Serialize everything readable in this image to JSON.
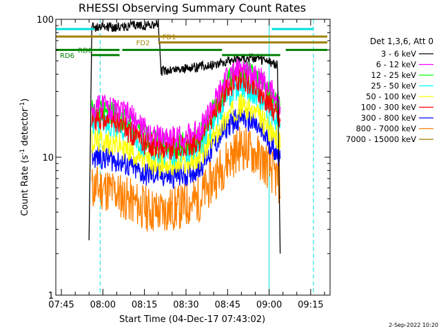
{
  "chart_data": {
    "type": "line",
    "title": "RHESSI Observing Summary Count Rates",
    "xlabel": "Start Time (04-Dec-17 07:43:02)",
    "ylabel_main": "Count Rate (s",
    "ylabel_sup1": "-1",
    "ylabel_mid": " detector",
    "ylabel_sup2": "-1",
    "ylabel_end": ")",
    "ylog": true,
    "ylim": [
      1,
      100
    ],
    "xlim": [
      "07:43",
      "09:22"
    ],
    "xticks": [
      "07:45",
      "08:00",
      "08:15",
      "08:30",
      "08:45",
      "09:00",
      "09:15"
    ],
    "yticks": [
      "1",
      "10",
      "100"
    ],
    "legend_header": "Det 1,3,6, Att 0",
    "legend_position": "right",
    "series": [
      {
        "name": "3 - 6 keV",
        "color": "#000000",
        "points": [
          [
            "07:55",
            2.5
          ],
          [
            "07:56",
            88
          ],
          [
            "08:05",
            88
          ],
          [
            "08:20",
            92
          ],
          [
            "08:21",
            42
          ],
          [
            "08:30",
            44
          ],
          [
            "08:40",
            47
          ],
          [
            "08:50",
            53
          ],
          [
            "08:55",
            52
          ],
          [
            "09:00",
            49
          ],
          [
            "09:03",
            47
          ],
          [
            "09:04",
            2
          ]
        ]
      },
      {
        "name": "6 - 12 keV",
        "color": "#ff00ff",
        "points": [
          [
            "07:56",
            22
          ],
          [
            "08:00",
            24
          ],
          [
            "08:05",
            22
          ],
          [
            "08:10",
            20
          ],
          [
            "08:15",
            16
          ],
          [
            "08:20",
            14
          ],
          [
            "08:25",
            14
          ],
          [
            "08:30",
            14
          ],
          [
            "08:35",
            16
          ],
          [
            "08:40",
            24
          ],
          [
            "08:45",
            38
          ],
          [
            "08:50",
            45
          ],
          [
            "08:55",
            40
          ],
          [
            "09:00",
            32
          ],
          [
            "09:04",
            24
          ]
        ]
      },
      {
        "name": "12 - 25 keV",
        "color": "#00ff00",
        "points": [
          [
            "07:56",
            22
          ],
          [
            "08:00",
            22
          ],
          [
            "08:05",
            20
          ],
          [
            "08:10",
            18
          ],
          [
            "08:15",
            14
          ],
          [
            "08:20",
            13
          ],
          [
            "08:25",
            12
          ],
          [
            "08:30",
            12.5
          ],
          [
            "08:35",
            14
          ],
          [
            "08:40",
            22
          ],
          [
            "08:45",
            35
          ],
          [
            "08:50",
            44
          ],
          [
            "08:55",
            38
          ],
          [
            "09:00",
            30
          ],
          [
            "09:04",
            22
          ]
        ]
      },
      {
        "name": "25 - 50 keV",
        "color": "#00ffff",
        "points": [
          [
            "07:56",
            18
          ],
          [
            "08:00",
            18
          ],
          [
            "08:05",
            17
          ],
          [
            "08:10",
            15
          ],
          [
            "08:15",
            12
          ],
          [
            "08:20",
            11
          ],
          [
            "08:25",
            10.5
          ],
          [
            "08:30",
            11
          ],
          [
            "08:35",
            12
          ],
          [
            "08:40",
            18
          ],
          [
            "08:45",
            28
          ],
          [
            "08:50",
            34
          ],
          [
            "08:55",
            29
          ],
          [
            "09:00",
            22
          ],
          [
            "09:04",
            17
          ]
        ]
      },
      {
        "name": "50 - 100 keV",
        "color": "#ffff00",
        "points": [
          [
            "07:56",
            13
          ],
          [
            "08:00",
            13
          ],
          [
            "08:05",
            12.5
          ],
          [
            "08:10",
            11
          ],
          [
            "08:15",
            9.5
          ],
          [
            "08:20",
            9
          ],
          [
            "08:25",
            8.8
          ],
          [
            "08:30",
            9
          ],
          [
            "08:35",
            10
          ],
          [
            "08:40",
            14
          ],
          [
            "08:45",
            20
          ],
          [
            "08:50",
            24
          ],
          [
            "08:55",
            21
          ],
          [
            "09:00",
            16
          ],
          [
            "09:04",
            13
          ]
        ]
      },
      {
        "name": "100 - 300 keV",
        "color": "#ff0000",
        "points": [
          [
            "07:56",
            19
          ],
          [
            "08:00",
            19
          ],
          [
            "08:05",
            18
          ],
          [
            "08:10",
            15
          ],
          [
            "08:15",
            12.5
          ],
          [
            "08:20",
            12
          ],
          [
            "08:25",
            11.5
          ],
          [
            "08:30",
            11.8
          ],
          [
            "08:35",
            13.5
          ],
          [
            "08:40",
            21
          ],
          [
            "08:45",
            32
          ],
          [
            "08:50",
            38
          ],
          [
            "08:55",
            32
          ],
          [
            "09:00",
            25
          ],
          [
            "09:04",
            19
          ]
        ]
      },
      {
        "name": "300 - 800 keV",
        "color": "#0000ff",
        "points": [
          [
            "07:56",
            10
          ],
          [
            "08:00",
            10
          ],
          [
            "08:05",
            9.5
          ],
          [
            "08:10",
            8.5
          ],
          [
            "08:15",
            7.5
          ],
          [
            "08:20",
            7.5
          ],
          [
            "08:25",
            7.2
          ],
          [
            "08:30",
            7.5
          ],
          [
            "08:35",
            8.5
          ],
          [
            "08:40",
            12
          ],
          [
            "08:45",
            17
          ],
          [
            "08:50",
            20
          ],
          [
            "08:55",
            17
          ],
          [
            "09:00",
            13
          ],
          [
            "09:04",
            10
          ]
        ]
      },
      {
        "name": "800 - 7000 keV",
        "color": "#ff8000",
        "points": [
          [
            "07:56",
            6
          ],
          [
            "08:00",
            6
          ],
          [
            "08:05",
            5.5
          ],
          [
            "08:10",
            4.8
          ],
          [
            "08:15",
            4.3
          ],
          [
            "08:20",
            4
          ],
          [
            "08:25",
            4.2
          ],
          [
            "08:30",
            4.5
          ],
          [
            "08:35",
            5
          ],
          [
            "08:40",
            7
          ],
          [
            "08:45",
            9.5
          ],
          [
            "08:50",
            12
          ],
          [
            "08:55",
            10.5
          ],
          [
            "09:00",
            8.5
          ],
          [
            "09:04",
            6.5
          ]
        ]
      },
      {
        "name": "7000 - 15000 keV",
        "color": "#a07800",
        "points": []
      }
    ],
    "segments": [
      {
        "label": "FD1",
        "color": "#a08000",
        "y": 75,
        "x": [
          "07:43",
          "09:21"
        ]
      },
      {
        "label": "FD2",
        "color": "#a08000",
        "y": 68,
        "x": [
          "08:20",
          "09:21"
        ]
      },
      {
        "label": "RD0",
        "color": "#008000",
        "y": 60,
        "x": [
          "07:43",
          "08:06"
        ]
      },
      {
        "label": "RD6",
        "color": "#008000",
        "y": 55,
        "x": [
          "07:56",
          "08:06"
        ]
      },
      {
        "label": "",
        "color": "#008000",
        "y": 60,
        "x": [
          "08:07",
          "08:43"
        ]
      },
      {
        "label": "",
        "color": "#008000",
        "y": 55,
        "x": [
          "08:43",
          "09:04"
        ]
      },
      {
        "label": "",
        "color": "#008000",
        "y": 60,
        "x": [
          "09:06",
          "09:21"
        ]
      },
      {
        "label": "",
        "color": "#00e0e0",
        "y": 85,
        "x": [
          "07:43",
          "07:57"
        ]
      },
      {
        "label": "",
        "color": "#00e0e0",
        "y": 85,
        "x": [
          "09:01",
          "09:16"
        ]
      }
    ],
    "vlines": [
      {
        "x": "07:43",
        "color": "#00e0e0",
        "dashed": false
      },
      {
        "x": "07:59",
        "color": "#00e0e0",
        "dashed": true
      },
      {
        "x": "09:00",
        "color": "#00e0e0",
        "dashed": false
      },
      {
        "x": "09:16",
        "color": "#00e0e0",
        "dashed": true
      }
    ]
  },
  "footer_timestamp": "2-Sep-2022 10:20"
}
